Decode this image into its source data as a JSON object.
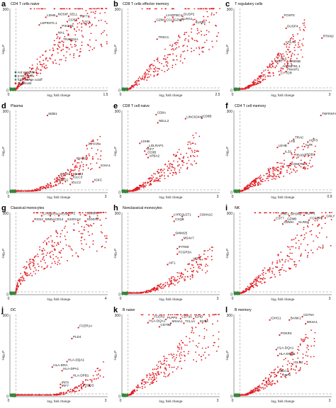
{
  "axis_text": {
    "x_label": "log₂ fold change",
    "y_label": "-log₁₀P"
  },
  "legend": {
    "items": [
      {
        "label": "not significant",
        "color": "#1a7a3a"
      },
      {
        "label": "p-val cutoff",
        "color": "#2a4fa0"
      },
      {
        "label": "fold change cutoff",
        "color": "#3a9d4a"
      },
      {
        "label": "significant",
        "color": "#e11b22"
      }
    ]
  },
  "colors": {
    "significant": "#e11b22",
    "nonsig": "#2e8b3a",
    "cutoff_line": "#888888"
  },
  "chart_data": [
    {
      "letter": "a",
      "title": "CD4 T cells naive",
      "type": "scatter",
      "xlim": [
        0,
        1.5
      ],
      "ylim": [
        0,
        300
      ],
      "xticks": [
        "0",
        "1.5"
      ],
      "yticks": [
        "0",
        "300"
      ],
      "points_top": 300,
      "points_max_x": 1.5,
      "points_shape": 0.35,
      "genes": [
        {
          "name": "LDHB",
          "x": 0.55,
          "y": 268
        },
        {
          "name": "NOSIP",
          "x": 0.72,
          "y": 272
        },
        {
          "name": "SELL",
          "x": 0.9,
          "y": 272
        },
        {
          "name": "TCF7",
          "x": 1.05,
          "y": 264
        },
        {
          "name": "CCR7",
          "x": 0.88,
          "y": 252
        },
        {
          "name": "LEF1",
          "x": 1.1,
          "y": 244
        },
        {
          "name": "LEPROTL1",
          "x": 0.45,
          "y": 240
        },
        {
          "name": "PIK3IP1",
          "x": 0.78,
          "y": 230
        },
        {
          "name": "MAL",
          "x": 0.72,
          "y": 205
        },
        {
          "name": "TRABD2A",
          "x": 0.8,
          "y": 180
        }
      ]
    },
    {
      "letter": "b",
      "title": "CD8 T cells effector memory",
      "type": "scatter",
      "xlim": [
        0,
        2.5
      ],
      "ylim": [
        0,
        300
      ],
      "xticks": [
        "0",
        "2.5"
      ],
      "yticks": [
        "0",
        "300"
      ],
      "points_top": 300,
      "points_max_x": 2.5,
      "points_shape": 0.55,
      "genes": [
        {
          "name": "LYAR",
          "x": 1.1,
          "y": 268
        },
        {
          "name": "TBC2",
          "x": 1.3,
          "y": 268
        },
        {
          "name": "DUSP2",
          "x": 1.55,
          "y": 272
        },
        {
          "name": "GZMA",
          "x": 0.85,
          "y": 252
        },
        {
          "name": "CCL5",
          "x": 1.1,
          "y": 252
        },
        {
          "name": "GZMH",
          "x": 1.3,
          "y": 252
        },
        {
          "name": "KLRG1",
          "x": 1.5,
          "y": 256
        },
        {
          "name": "KLRB1",
          "x": 1.85,
          "y": 242
        },
        {
          "name": "TRSC1",
          "x": 0.9,
          "y": 188
        }
      ]
    },
    {
      "letter": "c",
      "title": "T regulatory cells",
      "type": "scatter",
      "xlim": [
        0,
        3
      ],
      "ylim": [
        0,
        300
      ],
      "xticks": [
        "0",
        "3"
      ],
      "yticks": [
        "0",
        "300"
      ],
      "points_top": 230,
      "points_max_x": 2.2,
      "points_shape": 0.9,
      "genes": [
        {
          "name": "FOXP3",
          "x": 1.5,
          "y": 268
        },
        {
          "name": "DUSP4",
          "x": 1.6,
          "y": 228
        },
        {
          "name": "RTKN2",
          "x": 2.7,
          "y": 192
        },
        {
          "name": "CTLA4",
          "x": 1.55,
          "y": 170
        },
        {
          "name": "FAS",
          "x": 1.4,
          "y": 110
        },
        {
          "name": "TIGIT",
          "x": 1.2,
          "y": 100
        },
        {
          "name": "ARID5B",
          "x": 1.65,
          "y": 100
        },
        {
          "name": "AC058791.1",
          "x": 1.45,
          "y": 82
        },
        {
          "name": "PMAIP1",
          "x": 1.6,
          "y": 70
        },
        {
          "name": "CYTOR",
          "x": 1.4,
          "y": 58
        }
      ]
    },
    {
      "letter": "d",
      "title": "Plasma",
      "type": "scatter",
      "xlim": [
        0,
        3
      ],
      "ylim": [
        0,
        300
      ],
      "xticks": [
        "0",
        "3"
      ],
      "yticks": [
        "0",
        "300"
      ],
      "points_top": 200,
      "points_max_x": 2.8,
      "points_shape": 1.6,
      "genes": [
        {
          "name": "MZB1",
          "x": 1.15,
          "y": 282
        },
        {
          "name": "JCHAIN",
          "x": 2.35,
          "y": 172
        },
        {
          "name": "IGHA2",
          "x": 2.0,
          "y": 118
        },
        {
          "name": "IGHA1",
          "x": 2.75,
          "y": 92
        },
        {
          "name": "IGHG4",
          "x": 1.5,
          "y": 62
        },
        {
          "name": "IGHG3",
          "x": 1.9,
          "y": 62
        },
        {
          "name": "IGLC3",
          "x": 1.9,
          "y": 50
        },
        {
          "name": "IGHG1",
          "x": 1.45,
          "y": 40
        },
        {
          "name": "IGKC",
          "x": 2.55,
          "y": 40
        },
        {
          "name": "IGLC2",
          "x": 1.85,
          "y": 30
        }
      ]
    },
    {
      "letter": "e",
      "title": "CD8 T cell naive",
      "type": "scatter",
      "xlim": [
        0,
        3
      ],
      "ylim": [
        0,
        300
      ],
      "xticks": [
        "0",
        "3"
      ],
      "yticks": [
        "0",
        "300"
      ],
      "points_top": 200,
      "points_max_x": 2.4,
      "points_shape": 0.8,
      "genes": [
        {
          "name": "CD8A",
          "x": 1.05,
          "y": 285
        },
        {
          "name": "LINC02446",
          "x": 1.95,
          "y": 270
        },
        {
          "name": "CD8B",
          "x": 2.45,
          "y": 272
        },
        {
          "name": "NELL2",
          "x": 1.1,
          "y": 255
        },
        {
          "name": "LDHB",
          "x": 0.55,
          "y": 180
        },
        {
          "name": "LDLRAP1",
          "x": 0.8,
          "y": 165
        },
        {
          "name": "TCF7",
          "x": 0.7,
          "y": 152
        },
        {
          "name": "CD3B",
          "x": 0.75,
          "y": 140
        },
        {
          "name": "APBA2",
          "x": 0.8,
          "y": 128
        }
      ]
    },
    {
      "letter": "f",
      "title": "CD4 T cell memory",
      "type": "scatter",
      "xlim": [
        0,
        0.9
      ],
      "ylim": [
        0,
        300
      ],
      "xticks": [
        "0",
        "0.9"
      ],
      "yticks": [
        "0",
        "300"
      ],
      "points_top": 175,
      "points_max_x": 0.75,
      "points_shape": 0.5,
      "genes": [
        {
          "name": "TNFRSF4",
          "x": 0.8,
          "y": 282
        },
        {
          "name": "TRAC",
          "x": 0.55,
          "y": 195
        },
        {
          "name": "LTB",
          "x": 0.5,
          "y": 180
        },
        {
          "name": "AQP3",
          "x": 0.68,
          "y": 185
        },
        {
          "name": "LEHB",
          "x": 0.4,
          "y": 165
        },
        {
          "name": "IL7R",
          "x": 0.65,
          "y": 168
        },
        {
          "name": "IL32",
          "x": 0.46,
          "y": 143
        },
        {
          "name": "TRADD",
          "x": 0.55,
          "y": 130
        },
        {
          "name": "ITGB1",
          "x": 0.65,
          "y": 133
        },
        {
          "name": "AC058791.1",
          "x": 0.5,
          "y": 98
        }
      ]
    },
    {
      "letter": "g",
      "title": "Classical monocytes",
      "type": "scatter",
      "xlim": [
        0,
        4
      ],
      "ylim": [
        0,
        300
      ],
      "xticks": [
        "0",
        "4"
      ],
      "yticks": [
        "0",
        "300"
      ],
      "points_top": 300,
      "points_max_x": 4,
      "points_shape": 0.12,
      "genes": [
        {
          "name": "CTSS",
          "x": 1.3,
          "y": 288
        },
        {
          "name": "FCN1",
          "x": 1.65,
          "y": 288
        },
        {
          "name": "VCAN",
          "x": 2.0,
          "y": 288
        },
        {
          "name": "LYZ",
          "x": 2.4,
          "y": 290
        },
        {
          "name": "S100A9",
          "x": 3.1,
          "y": 290
        },
        {
          "name": "RGS2",
          "x": 0.95,
          "y": 268
        },
        {
          "name": "MNDA",
          "x": 1.4,
          "y": 268
        },
        {
          "name": "CD14",
          "x": 1.8,
          "y": 268
        },
        {
          "name": "S100A12",
          "x": 2.3,
          "y": 268
        },
        {
          "name": "S100A8",
          "x": 3.1,
          "y": 268
        }
      ]
    },
    {
      "letter": "h",
      "title": "Nonclassical monocytes",
      "type": "scatter",
      "xlim": [
        0,
        3
      ],
      "ylim": [
        0,
        300
      ],
      "xticks": [
        "0",
        "3"
      ],
      "yticks": [
        "0",
        "300"
      ],
      "points_top": 170,
      "points_max_x": 2.8,
      "points_shape": 1.3,
      "genes": [
        {
          "name": "LYPD2",
          "x": 1.55,
          "y": 285
        },
        {
          "name": "LST1",
          "x": 1.85,
          "y": 285
        },
        {
          "name": "CDKN1C",
          "x": 2.35,
          "y": 285
        },
        {
          "name": "C1QB",
          "x": 1.6,
          "y": 268
        },
        {
          "name": "SMIM25",
          "x": 1.6,
          "y": 218
        },
        {
          "name": "MS4A7",
          "x": 1.85,
          "y": 200
        },
        {
          "name": "IFITM3",
          "x": 1.7,
          "y": 168
        },
        {
          "name": "FCGR3A",
          "x": 1.7,
          "y": 148
        },
        {
          "name": "LEF1",
          "x": 2.15,
          "y": 125
        },
        {
          "name": "AIF1",
          "x": 1.4,
          "y": 110
        }
      ]
    },
    {
      "letter": "i",
      "title": "NK",
      "type": "scatter",
      "xlim": [
        0,
        3
      ],
      "ylim": [
        0,
        300
      ],
      "xticks": [
        "0",
        "3"
      ],
      "yticks": [
        "0",
        "300"
      ],
      "points_top": 300,
      "points_max_x": 3,
      "points_shape": 0.6,
      "genes": [
        {
          "name": "PRF1",
          "x": 1.4,
          "y": 288
        },
        {
          "name": "SPON2",
          "x": 1.7,
          "y": 288
        },
        {
          "name": "KLRF1",
          "x": 2.15,
          "y": 290
        },
        {
          "name": "GNLY",
          "x": 2.8,
          "y": 280
        },
        {
          "name": "CST7",
          "x": 1.25,
          "y": 272
        },
        {
          "name": "GZMB",
          "x": 1.6,
          "y": 270
        },
        {
          "name": "FGFBP2",
          "x": 2.3,
          "y": 272
        },
        {
          "name": "GZMH",
          "x": 1.5,
          "y": 258
        },
        {
          "name": "KLRD1",
          "x": 1.95,
          "y": 258
        }
      ]
    },
    {
      "letter": "j",
      "title": "DC",
      "type": "scatter",
      "xlim": [
        0,
        3
      ],
      "ylim": [
        0,
        300
      ],
      "xticks": [
        "0",
        "3"
      ],
      "yticks": [
        "0",
        "300"
      ],
      "points_top": 120,
      "points_max_x": 2.9,
      "points_shape": 3.0,
      "genes": [
        {
          "name": "FCER1A",
          "x": 2.1,
          "y": 252
        },
        {
          "name": "PLD4",
          "x": 1.9,
          "y": 212
        },
        {
          "name": "HLA-DQA1",
          "x": 1.75,
          "y": 128
        },
        {
          "name": "HLA-DRA",
          "x": 1.3,
          "y": 108
        },
        {
          "name": "HLA-DPA1",
          "x": 1.6,
          "y": 95
        },
        {
          "name": "HLA-DPB1",
          "x": 1.9,
          "y": 70
        },
        {
          "name": "IRF8",
          "x": 1.55,
          "y": 45
        },
        {
          "name": "IRF7",
          "x": 1.55,
          "y": 33
        },
        {
          "name": "PTGDS",
          "x": 2.2,
          "y": 35
        }
      ]
    },
    {
      "letter": "k",
      "title": "B naive",
      "type": "scatter",
      "xlim": [
        0,
        3
      ],
      "ylim": [
        0,
        300
      ],
      "xticks": [
        "0",
        "3"
      ],
      "yticks": [
        "0",
        "300"
      ],
      "points_top": 300,
      "points_max_x": 3,
      "points_shape": 0.55,
      "genes": [
        {
          "name": "FCER2",
          "x": 0.95,
          "y": 285
        },
        {
          "name": "PLPP5",
          "x": 1.35,
          "y": 282
        },
        {
          "name": "CD79A",
          "x": 1.8,
          "y": 285
        },
        {
          "name": "IGHD",
          "x": 2.2,
          "y": 285
        },
        {
          "name": "HLA-DQA1",
          "x": 0.8,
          "y": 270
        },
        {
          "name": "MS4A1",
          "x": 1.5,
          "y": 268
        },
        {
          "name": "TCL1A",
          "x": 1.9,
          "y": 268
        },
        {
          "name": "IGHM",
          "x": 2.35,
          "y": 268
        },
        {
          "name": "CD79B",
          "x": 1.15,
          "y": 255
        }
      ]
    },
    {
      "letter": "l",
      "title": "B memory",
      "type": "scatter",
      "xlim": [
        0,
        3
      ],
      "ylim": [
        0,
        300
      ],
      "xticks": [
        "0",
        "3"
      ],
      "yticks": [
        "0",
        "300"
      ],
      "points_top": 230,
      "points_max_x": 2.5,
      "points_shape": 0.9,
      "genes": [
        {
          "name": "CD79A",
          "x": 2.1,
          "y": 292
        },
        {
          "name": "IGHG1",
          "x": 1.1,
          "y": 280
        },
        {
          "name": "BANK1",
          "x": 1.7,
          "y": 280
        },
        {
          "name": "MS4A1",
          "x": 2.2,
          "y": 266
        },
        {
          "name": "POKR3",
          "x": 1.4,
          "y": 225
        },
        {
          "name": "HLA-DQA1",
          "x": 1.3,
          "y": 172
        },
        {
          "name": "HLA-DQB1",
          "x": 1.35,
          "y": 150
        },
        {
          "name": "IGLC2",
          "x": 1.8,
          "y": 118
        },
        {
          "name": "IGLC3",
          "x": 1.35,
          "y": 88
        },
        {
          "name": "CD74",
          "x": 1.45,
          "y": 72
        }
      ]
    }
  ]
}
